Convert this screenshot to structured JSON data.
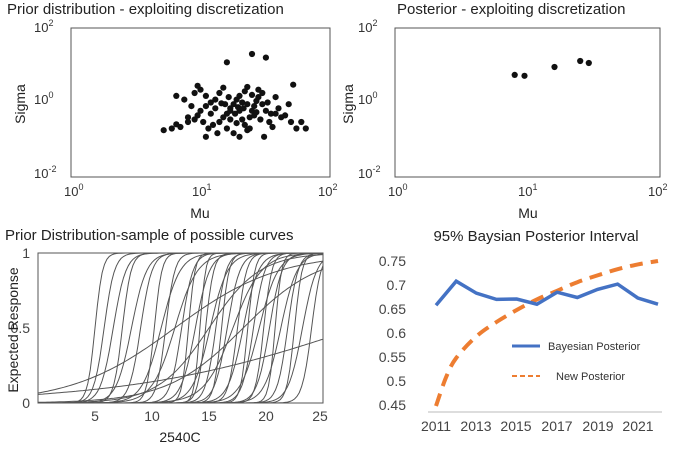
{
  "chart_data": [
    {
      "type": "scatter",
      "title": "Prior distribution - exploiting discretization",
      "xlabel": "Mu",
      "ylabel": "Sigma",
      "xscale": "log",
      "yscale": "log",
      "xlim": [
        1,
        100
      ],
      "ylim": [
        0.01,
        100
      ],
      "xticks": [
        "10",
        "10",
        "10"
      ],
      "xtick_exponents": [
        "0",
        "1",
        "2"
      ],
      "yticks": [
        "10",
        "10",
        "10"
      ],
      "ytick_exponents": [
        "-2",
        "0",
        "2"
      ],
      "points": [
        [
          5.2,
          0.18
        ],
        [
          6,
          0.2
        ],
        [
          7,
          0.22
        ],
        [
          6.5,
          0.26
        ],
        [
          8,
          0.3
        ],
        [
          9,
          0.35
        ],
        [
          9.5,
          0.45
        ],
        [
          10,
          0.6
        ],
        [
          11,
          0.8
        ],
        [
          12,
          1.0
        ],
        [
          13,
          1.2
        ],
        [
          12.5,
          0.25
        ],
        [
          14,
          0.3
        ],
        [
          15,
          0.4
        ],
        [
          16,
          0.5
        ],
        [
          17,
          0.7
        ],
        [
          18,
          0.9
        ],
        [
          19,
          1.2
        ],
        [
          20,
          1.5
        ],
        [
          21,
          0.35
        ],
        [
          22,
          0.25
        ],
        [
          23,
          0.18
        ],
        [
          24,
          0.4
        ],
        [
          25,
          0.6
        ],
        [
          26,
          0.8
        ],
        [
          27,
          1.1
        ],
        [
          28,
          1.4
        ],
        [
          30,
          1.8
        ],
        [
          32,
          0.6
        ],
        [
          34,
          0.3
        ],
        [
          36,
          0.22
        ],
        [
          38,
          0.5
        ],
        [
          40,
          0.7
        ],
        [
          45,
          0.45
        ],
        [
          50,
          0.3
        ],
        [
          55,
          0.2
        ],
        [
          60,
          0.3
        ],
        [
          65,
          0.2
        ],
        [
          7.5,
          1.2
        ],
        [
          8.5,
          0.8
        ],
        [
          9,
          1.8
        ],
        [
          10,
          2.2
        ],
        [
          11,
          1.5
        ],
        [
          12,
          0.5
        ],
        [
          13,
          0.7
        ],
        [
          14,
          1.8
        ],
        [
          15,
          2.5
        ],
        [
          16,
          0.2
        ],
        [
          17,
          0.35
        ],
        [
          18,
          0.15
        ],
        [
          19,
          0.28
        ],
        [
          20,
          0.6
        ],
        [
          21,
          1.0
        ],
        [
          22,
          2.0
        ],
        [
          23,
          2.6
        ],
        [
          25,
          1.6
        ],
        [
          28,
          2.2
        ],
        [
          30,
          0.9
        ],
        [
          33,
          1.0
        ],
        [
          35,
          0.5
        ],
        [
          38,
          1.4
        ],
        [
          42,
          0.4
        ],
        [
          48,
          0.9
        ],
        [
          10.5,
          0.3
        ],
        [
          11.5,
          0.2
        ],
        [
          13.5,
          0.15
        ],
        [
          15.5,
          0.9
        ],
        [
          16.5,
          1.4
        ],
        [
          18.5,
          0.5
        ],
        [
          21.5,
          0.7
        ],
        [
          24,
          0.2
        ],
        [
          26,
          0.45
        ],
        [
          29,
          0.35
        ],
        [
          31,
          0.12
        ],
        [
          20,
          0.12
        ],
        [
          6.5,
          1.5
        ],
        [
          9.5,
          2.8
        ],
        [
          14.5,
          0.95
        ],
        [
          17,
          0.6
        ],
        [
          19.5,
          0.75
        ],
        [
          23,
          0.9
        ],
        [
          27,
          0.55
        ],
        [
          52,
          3.0
        ],
        [
          16,
          12
        ],
        [
          25,
          20
        ],
        [
          32,
          16
        ],
        [
          11,
          0.12
        ],
        [
          8,
          0.4
        ]
      ]
    },
    {
      "type": "scatter",
      "title": "Posterior -  exploiting discretization",
      "xlabel": "Mu",
      "ylabel": "Sigma",
      "xscale": "log",
      "yscale": "log",
      "xlim": [
        1,
        100
      ],
      "ylim": [
        0.01,
        100
      ],
      "xticks": [
        "10",
        "10",
        "10"
      ],
      "xtick_exponents": [
        "0",
        "1",
        "2"
      ],
      "yticks": [
        "10",
        "10",
        "10"
      ],
      "ytick_exponents": [
        "-2",
        "0",
        "2"
      ],
      "points": [
        [
          8,
          5.5
        ],
        [
          9.5,
          5.2
        ],
        [
          16,
          9
        ],
        [
          25,
          13
        ],
        [
          29,
          11.5
        ]
      ]
    },
    {
      "type": "line",
      "title": "Prior Distribution-sample of possible curves",
      "xlabel": "2540C",
      "ylabel": "Expected Response",
      "xlim": [
        0,
        25
      ],
      "ylim": [
        0,
        1
      ],
      "xticks": [
        "5",
        "10",
        "15",
        "20",
        "25"
      ],
      "yticks": [
        "0",
        "0.5",
        "1"
      ],
      "curves": [
        {
          "mid": 5.0,
          "k": 3.0
        },
        {
          "mid": 5.8,
          "k": 2.2
        },
        {
          "mid": 6.6,
          "k": 1.8
        },
        {
          "mid": 7.4,
          "k": 2.6
        },
        {
          "mid": 8.2,
          "k": 1.5
        },
        {
          "mid": 9.0,
          "k": 2.0
        },
        {
          "mid": 10.2,
          "k": 3.0
        },
        {
          "mid": 10.8,
          "k": 1.2
        },
        {
          "mid": 11.2,
          "k": 2.5
        },
        {
          "mid": 12.0,
          "k": 1.0
        },
        {
          "mid": 12.6,
          "k": 2.0
        },
        {
          "mid": 13.2,
          "k": 3.5
        },
        {
          "mid": 13.8,
          "k": 1.6
        },
        {
          "mid": 14.2,
          "k": 4.0
        },
        {
          "mid": 14.7,
          "k": 2.8
        },
        {
          "mid": 15.1,
          "k": 1.3
        },
        {
          "mid": 15.6,
          "k": 2.2
        },
        {
          "mid": 16.1,
          "k": 3.0
        },
        {
          "mid": 16.6,
          "k": 1.8
        },
        {
          "mid": 17.1,
          "k": 0.8
        },
        {
          "mid": 17.5,
          "k": 2.5
        },
        {
          "mid": 18.0,
          "k": 1.5
        },
        {
          "mid": 18.4,
          "k": 3.2
        },
        {
          "mid": 18.9,
          "k": 2.0
        },
        {
          "mid": 19.4,
          "k": 1.2
        },
        {
          "mid": 19.8,
          "k": 2.8
        },
        {
          "mid": 20.3,
          "k": 1.8
        },
        {
          "mid": 20.8,
          "k": 3.5
        },
        {
          "mid": 21.3,
          "k": 1.4
        },
        {
          "mid": 21.9,
          "k": 2.2
        },
        {
          "mid": 22.5,
          "k": 3.0
        },
        {
          "mid": 23.2,
          "k": 1.6
        },
        {
          "mid": 24.0,
          "k": 2.4
        },
        {
          "mid": 15.0,
          "k": 0.45
        },
        {
          "mid": 12.0,
          "k": 0.22
        },
        {
          "mid": 18.0,
          "k": 0.3
        },
        {
          "mid": 28.0,
          "k": 0.1
        }
      ]
    },
    {
      "type": "line",
      "title": "95% Baysian Posterior Interval",
      "xlabel": "",
      "ylabel": "",
      "ylim": [
        0.45,
        0.75
      ],
      "yticks": [
        "0.75",
        "0.7",
        "0.65",
        "0.6",
        "0.55",
        "0.5",
        "0.45"
      ],
      "categories": [
        "2011",
        "2013",
        "2015",
        "2017",
        "2019",
        "2021"
      ],
      "legend_location": "center-right",
      "series": [
        {
          "name": "Bayesian Posterior",
          "style": "solid",
          "color": "#4472c4",
          "x": [
            2011,
            2012,
            2013,
            2014,
            2015,
            2016,
            2017,
            2018,
            2019,
            2020,
            2021,
            2022
          ],
          "values": [
            0.66,
            0.71,
            0.685,
            0.672,
            0.673,
            0.662,
            0.687,
            0.676,
            0.693,
            0.704,
            0.675,
            0.662
          ]
        },
        {
          "name": "New Posterior",
          "style": "dashed",
          "color": "#ed7d31",
          "x": [
            2011,
            2011.5,
            2012,
            2013,
            2014,
            2015,
            2016,
            2017,
            2018,
            2019,
            2020,
            2021,
            2022
          ],
          "values": [
            0.45,
            0.51,
            0.55,
            0.595,
            0.625,
            0.65,
            0.672,
            0.69,
            0.708,
            0.722,
            0.735,
            0.745,
            0.752
          ]
        }
      ]
    }
  ]
}
